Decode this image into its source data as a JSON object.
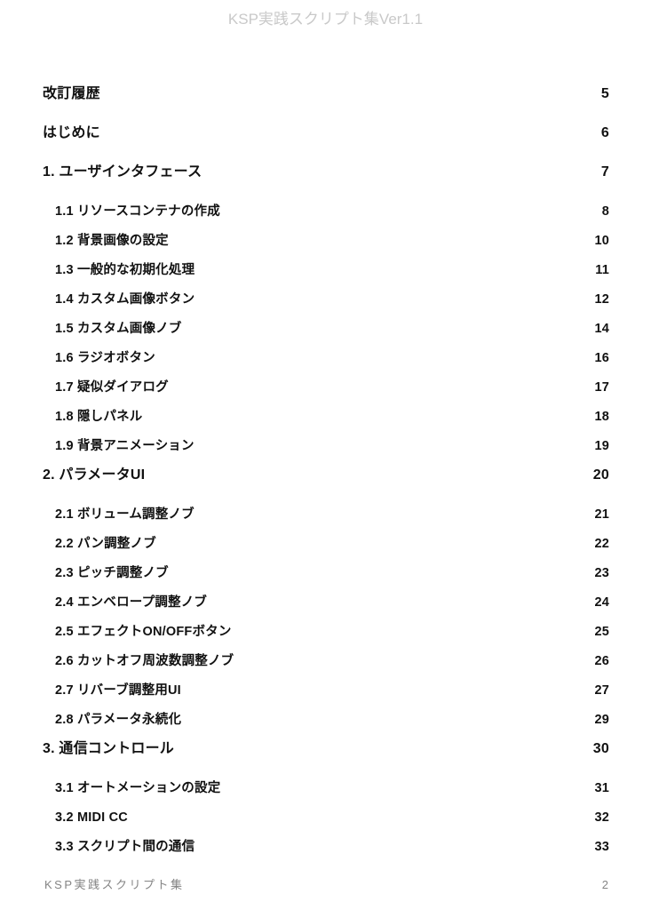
{
  "header": {
    "title": "KSP実践スクリプト集Ver1.1"
  },
  "toc": {
    "entries": [
      {
        "label": "改訂履歴",
        "page": "5",
        "level": "top"
      },
      {
        "label": "はじめに",
        "page": "6",
        "level": "top"
      },
      {
        "label": "1. ユーザインタフェース",
        "page": "7",
        "level": "top"
      },
      {
        "label": "1.1 リソースコンテナの作成",
        "page": "8",
        "level": "sub"
      },
      {
        "label": "1.2 背景画像の設定",
        "page": "10",
        "level": "sub"
      },
      {
        "label": "1.3 一般的な初期化処理",
        "page": "11",
        "level": "sub"
      },
      {
        "label": "1.4 カスタム画像ボタン",
        "page": "12",
        "level": "sub"
      },
      {
        "label": "1.5 カスタム画像ノブ",
        "page": "14",
        "level": "sub"
      },
      {
        "label": "1.6 ラジオボタン",
        "page": "16",
        "level": "sub"
      },
      {
        "label": "1.7 疑似ダイアログ",
        "page": "17",
        "level": "sub"
      },
      {
        "label": "1.8 隠しパネル",
        "page": "18",
        "level": "sub"
      },
      {
        "label": "1.9 背景アニメーション",
        "page": "19",
        "level": "sub"
      },
      {
        "label": "2. パラメータUI",
        "page": "20",
        "level": "top"
      },
      {
        "label": "2.1 ボリューム調整ノブ",
        "page": "21",
        "level": "sub"
      },
      {
        "label": "2.2 パン調整ノブ",
        "page": "22",
        "level": "sub"
      },
      {
        "label": "2.3 ピッチ調整ノブ",
        "page": "23",
        "level": "sub"
      },
      {
        "label": "2.4 エンベロープ調整ノブ",
        "page": "24",
        "level": "sub"
      },
      {
        "label": "2.5 エフェクトON/OFFボタン",
        "page": "25",
        "level": "sub"
      },
      {
        "label": "2.6 カットオフ周波数調整ノブ",
        "page": "26",
        "level": "sub"
      },
      {
        "label": "2.7 リバーブ調整用UI",
        "page": "27",
        "level": "sub"
      },
      {
        "label": "2.8 パラメータ永続化",
        "page": "29",
        "level": "sub"
      },
      {
        "label": "3. 通信コントロール",
        "page": "30",
        "level": "top"
      },
      {
        "label": "3.1 オートメーションの設定",
        "page": "31",
        "level": "sub"
      },
      {
        "label": "3.2 MIDI CC",
        "page": "32",
        "level": "sub"
      },
      {
        "label": "3.3 スクリプト間の通信",
        "page": "33",
        "level": "sub"
      }
    ]
  },
  "footer": {
    "title": "KSP実践スクリプト集",
    "page_number": "2"
  }
}
